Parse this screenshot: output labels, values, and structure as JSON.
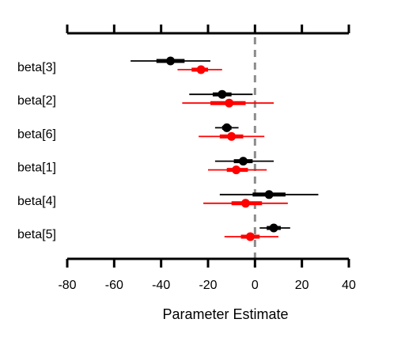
{
  "chart_data": {
    "type": "forest",
    "xlabel": "Parameter Estimate",
    "xlim": [
      -80,
      40
    ],
    "xticks": [
      -80,
      -60,
      -40,
      -20,
      0,
      20,
      40
    ],
    "xtick_labels": [
      "-80",
      "-60",
      "-40",
      "-20",
      "0",
      "20",
      "40"
    ],
    "reference_line": {
      "x": 0,
      "style": "dashed",
      "color": "#8c8c8c"
    },
    "series": [
      {
        "name": "",
        "color": "#000000"
      },
      {
        "name": "",
        "color": "#ff0000"
      }
    ],
    "rows": [
      {
        "label": "beta[3]",
        "estimates": [
          {
            "series": 0,
            "point": -36,
            "inner": [
              -42,
              -30
            ],
            "outer": [
              -53,
              -19
            ]
          },
          {
            "series": 1,
            "point": -23,
            "inner": [
              -27,
              -20
            ],
            "outer": [
              -33,
              -14
            ]
          }
        ]
      },
      {
        "label": "beta[2]",
        "estimates": [
          {
            "series": 0,
            "point": -14,
            "inner": [
              -18,
              -10
            ],
            "outer": [
              -28,
              -1
            ]
          },
          {
            "series": 1,
            "point": -11,
            "inner": [
              -19,
              -4
            ],
            "outer": [
              -31,
              8
            ]
          }
        ]
      },
      {
        "label": "beta[6]",
        "estimates": [
          {
            "series": 0,
            "point": -12,
            "inner": [
              -14,
              -10
            ],
            "outer": [
              -17,
              -7
            ]
          },
          {
            "series": 1,
            "point": -10,
            "inner": [
              -15,
              -5
            ],
            "outer": [
              -24,
              4
            ]
          }
        ]
      },
      {
        "label": "beta[1]",
        "estimates": [
          {
            "series": 0,
            "point": -5,
            "inner": [
              -9,
              -1
            ],
            "outer": [
              -17,
              8
            ]
          },
          {
            "series": 1,
            "point": -8,
            "inner": [
              -12,
              -3
            ],
            "outer": [
              -20,
              5
            ]
          }
        ]
      },
      {
        "label": "beta[4]",
        "estimates": [
          {
            "series": 0,
            "point": 6,
            "inner": [
              -1,
              13
            ],
            "outer": [
              -15,
              27
            ]
          },
          {
            "series": 1,
            "point": -4,
            "inner": [
              -10,
              3
            ],
            "outer": [
              -22,
              14
            ]
          }
        ]
      },
      {
        "label": "beta[5]",
        "estimates": [
          {
            "series": 0,
            "point": 8,
            "inner": [
              5,
              11
            ],
            "outer": [
              2,
              15
            ]
          },
          {
            "series": 1,
            "point": -2,
            "inner": [
              -6,
              2
            ],
            "outer": [
              -13,
              10
            ]
          }
        ]
      }
    ]
  }
}
